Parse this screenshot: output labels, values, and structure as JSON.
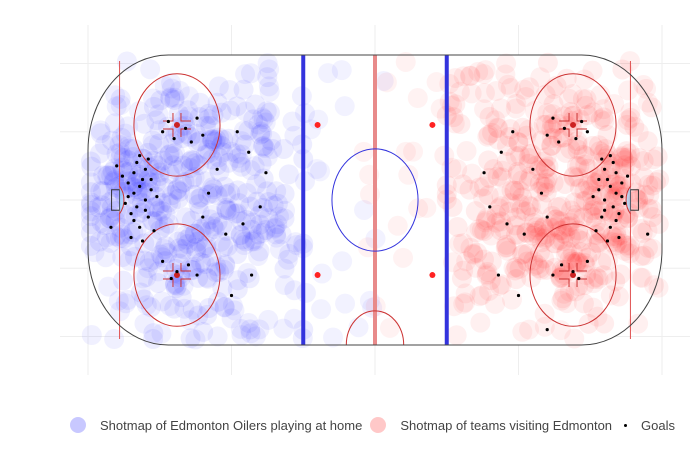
{
  "chart_data": {
    "type": "scatter",
    "title": "",
    "xlabel": "",
    "ylabel": "",
    "xlim": [
      -100,
      100
    ],
    "ylim": [
      -42.5,
      42.5
    ],
    "grid": true,
    "legend_position": "bottom",
    "series": [
      {
        "name": "Shotmap of Edmonton Oilers playing at home",
        "color": "#0000ff",
        "marker": "large translucent circle",
        "density_centers": [
          [
            -85,
            0,
            28
          ],
          [
            -68,
            20,
            12
          ],
          [
            -68,
            -20,
            12
          ],
          [
            -55,
            10,
            10
          ],
          [
            -55,
            -10,
            10
          ],
          [
            -40,
            15,
            6
          ],
          [
            -40,
            -15,
            6
          ]
        ]
      },
      {
        "name": "Shotmap of teams visiting Edmonton",
        "color": "#ff0000",
        "marker": "large translucent circle",
        "density_centers": [
          [
            85,
            0,
            28
          ],
          [
            68,
            20,
            12
          ],
          [
            68,
            -20,
            12
          ],
          [
            55,
            10,
            10
          ],
          [
            55,
            -10,
            10
          ],
          [
            40,
            15,
            6
          ],
          [
            40,
            -15,
            6
          ]
        ]
      },
      {
        "name": "Goals",
        "color": "#000000",
        "marker": "small dot",
        "points": [
          [
            -82,
            4
          ],
          [
            -84,
            2
          ],
          [
            -80,
            0
          ],
          [
            -83,
            -2
          ],
          [
            -85,
            -4
          ],
          [
            -81,
            6
          ],
          [
            -86,
            5
          ],
          [
            -79,
            -5
          ],
          [
            -84,
            8
          ],
          [
            -82,
            -8
          ],
          [
            -78,
            3
          ],
          [
            -87,
            -1
          ],
          [
            -80,
            9
          ],
          [
            -83,
            11
          ],
          [
            -77,
            -9
          ],
          [
            -85,
            -11
          ],
          [
            -88,
            7
          ],
          [
            -76,
            1
          ],
          [
            -81,
            -12
          ],
          [
            -79,
            12
          ],
          [
            -84,
            -6
          ],
          [
            -86,
            1
          ],
          [
            -82,
            13
          ],
          [
            -80,
            -3
          ],
          [
            -78,
            6
          ],
          [
            -74,
            20
          ],
          [
            -70,
            18
          ],
          [
            -66,
            21
          ],
          [
            -72,
            23
          ],
          [
            -64,
            17
          ],
          [
            -62,
            24
          ],
          [
            -60,
            19
          ],
          [
            -74,
            -18
          ],
          [
            -69,
            -21
          ],
          [
            -65,
            -19
          ],
          [
            -71,
            -23
          ],
          [
            -62,
            -22
          ],
          [
            -58,
            2
          ],
          [
            -60,
            -5
          ],
          [
            -55,
            9
          ],
          [
            -52,
            -10
          ],
          [
            -48,
            20
          ],
          [
            -46,
            -7
          ],
          [
            -44,
            14
          ],
          [
            -40,
            -2
          ],
          [
            -38,
            8
          ],
          [
            -43,
            -22
          ],
          [
            -50,
            -28
          ],
          [
            -92,
            -8
          ],
          [
            -90,
            10
          ],
          [
            82,
            4
          ],
          [
            84,
            2
          ],
          [
            80,
            0
          ],
          [
            83,
            -2
          ],
          [
            85,
            -4
          ],
          [
            81,
            6
          ],
          [
            86,
            5
          ],
          [
            79,
            -5
          ],
          [
            84,
            8
          ],
          [
            82,
            -8
          ],
          [
            78,
            3
          ],
          [
            87,
            -1
          ],
          [
            80,
            9
          ],
          [
            83,
            11
          ],
          [
            77,
            -9
          ],
          [
            85,
            -11
          ],
          [
            88,
            7
          ],
          [
            76,
            1
          ],
          [
            81,
            -12
          ],
          [
            79,
            12
          ],
          [
            84,
            -6
          ],
          [
            86,
            1
          ],
          [
            82,
            13
          ],
          [
            80,
            -3
          ],
          [
            78,
            6
          ],
          [
            74,
            20
          ],
          [
            70,
            18
          ],
          [
            66,
            21
          ],
          [
            72,
            23
          ],
          [
            64,
            17
          ],
          [
            62,
            24
          ],
          [
            60,
            19
          ],
          [
            74,
            -18
          ],
          [
            69,
            -21
          ],
          [
            65,
            -19
          ],
          [
            71,
            -23
          ],
          [
            62,
            -22
          ],
          [
            58,
            2
          ],
          [
            60,
            -5
          ],
          [
            55,
            9
          ],
          [
            52,
            -10
          ],
          [
            48,
            20
          ],
          [
            46,
            -7
          ],
          [
            44,
            14
          ],
          [
            40,
            -2
          ],
          [
            38,
            8
          ],
          [
            43,
            -22
          ],
          [
            50,
            -28
          ],
          [
            60,
            -38
          ],
          [
            95,
            -10
          ]
        ]
      }
    ],
    "rink": {
      "length_ft": 200,
      "width_ft": 85,
      "center_line_x": 0,
      "blue_lines_x": [
        -25,
        25
      ],
      "goal_lines_x": [
        -89,
        89
      ],
      "faceoff_circle_centers": [
        [
          -69,
          22
        ],
        [
          -69,
          -22
        ],
        [
          69,
          22
        ],
        [
          69,
          -22
        ],
        [
          0,
          0
        ]
      ],
      "neutral_faceoff_dots": [
        [
          -20,
          22
        ],
        [
          -20,
          -22
        ],
        [
          20,
          22
        ],
        [
          20,
          -22
        ]
      ]
    }
  }
}
